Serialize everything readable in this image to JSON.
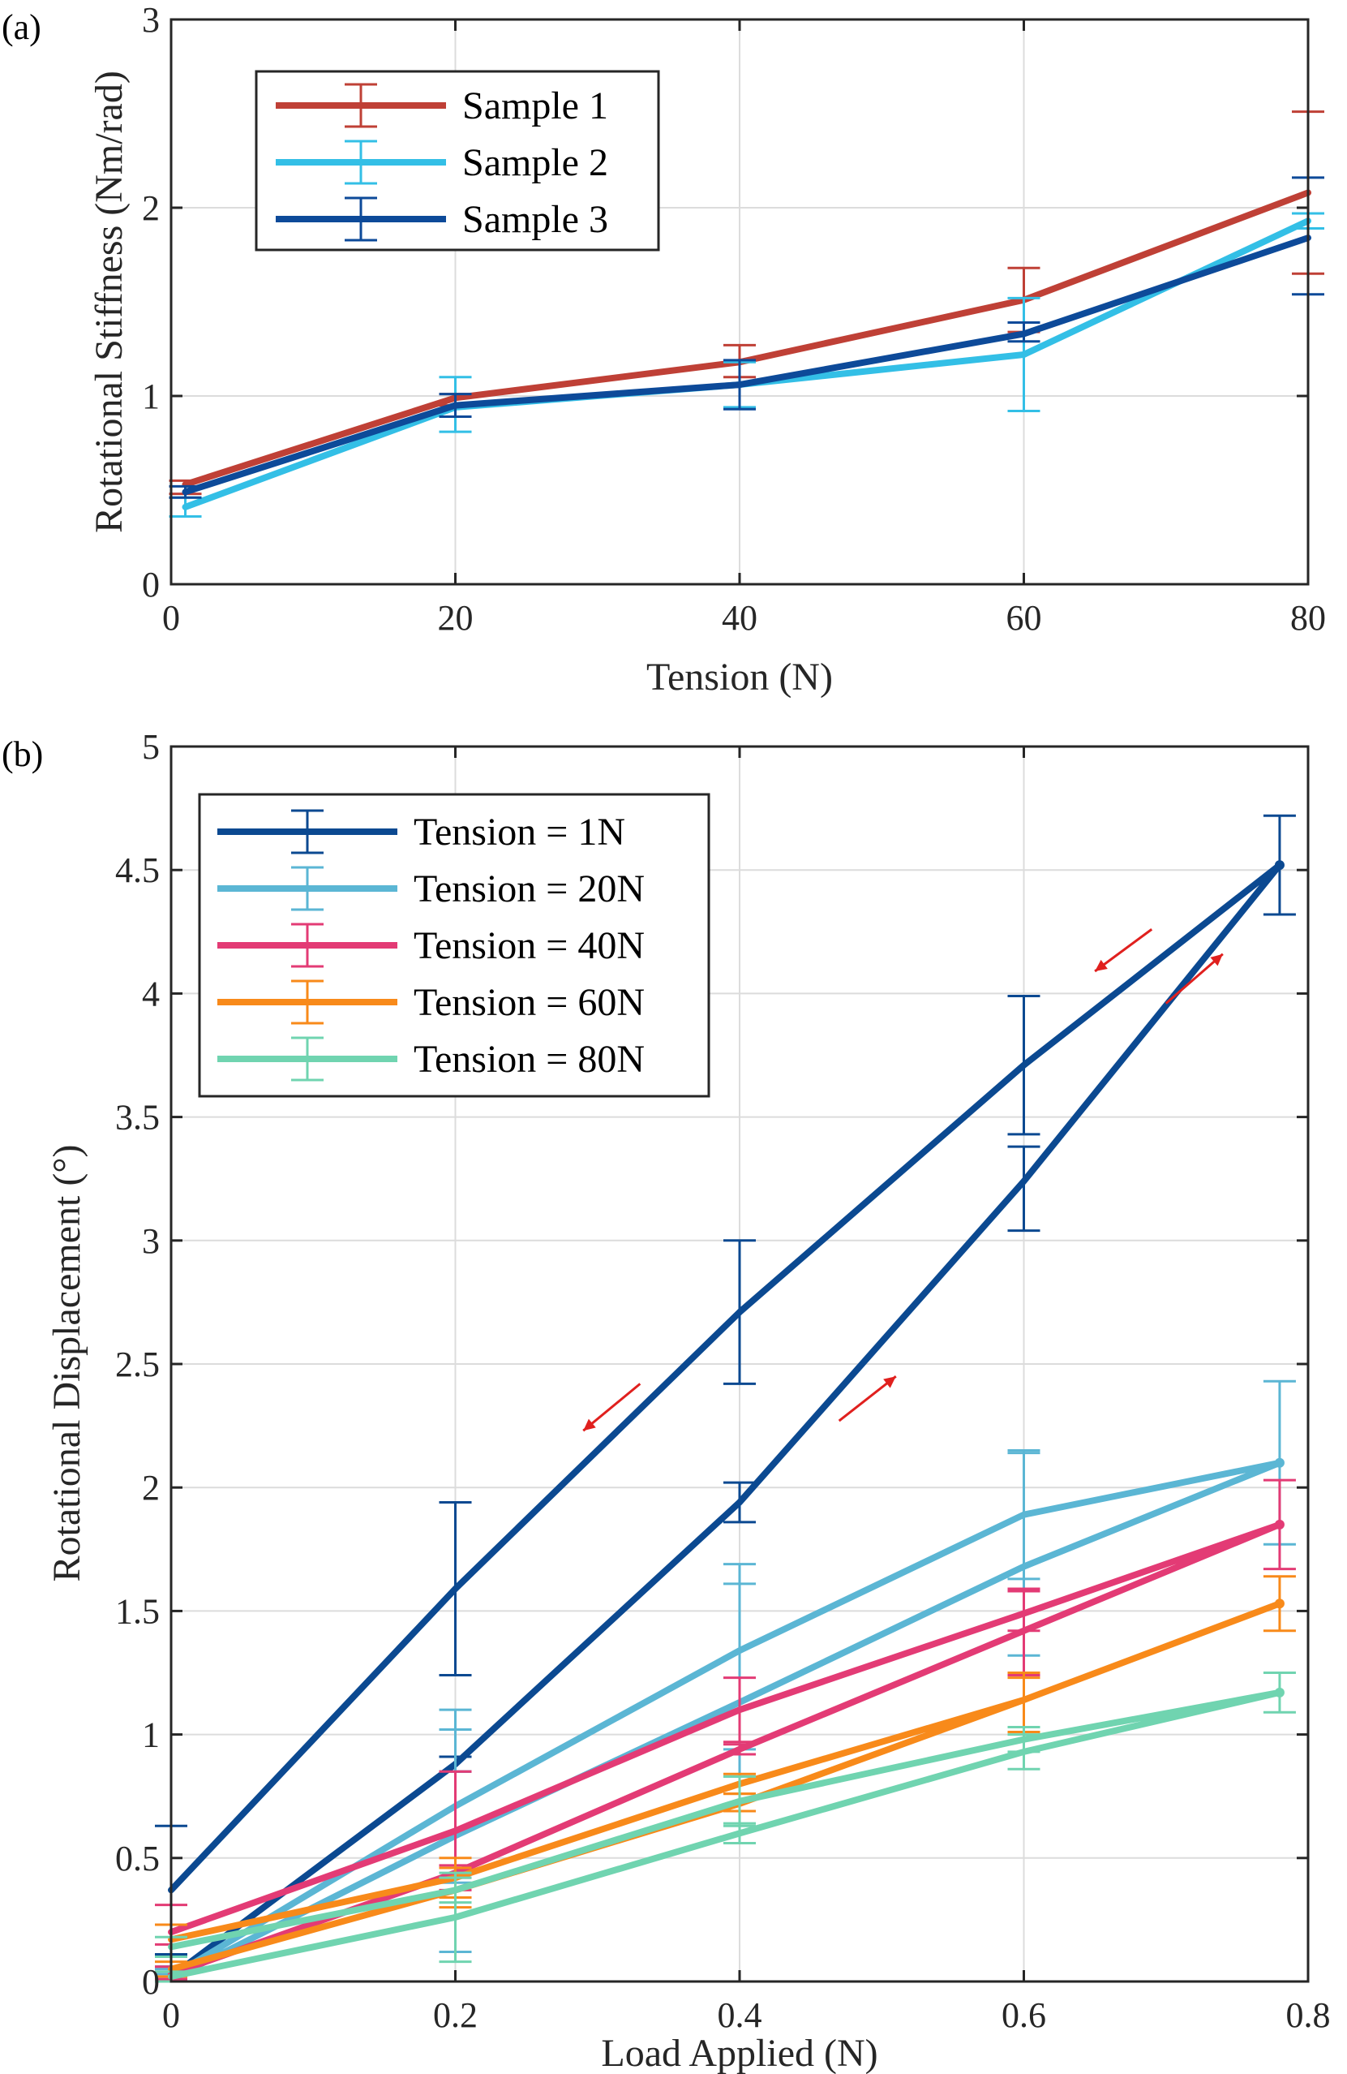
{
  "chart_data": [
    {
      "panel": "(a)",
      "type": "line",
      "xlabel": "Tension (N)",
      "ylabel": "Rotational Stiffness (Nm/rad)",
      "xlim": [
        0,
        80
      ],
      "ylim": [
        0,
        3
      ],
      "xticks": [
        0,
        20,
        40,
        60,
        80
      ],
      "yticks": [
        0,
        1,
        2,
        3
      ],
      "grid": true,
      "legend_position": "top-left",
      "series": [
        {
          "name": "Sample 1",
          "color": "#bf4036",
          "x": [
            1,
            20,
            40,
            60,
            80
          ],
          "y": [
            0.53,
            0.99,
            1.18,
            1.51,
            2.08
          ],
          "err_low": [
            0.48,
            0.95,
            1.1,
            1.34,
            1.65
          ],
          "err_high": [
            0.55,
            1.01,
            1.27,
            1.68,
            2.51
          ]
        },
        {
          "name": "Sample 2",
          "color": "#33bfe6",
          "x": [
            1,
            20,
            40,
            60,
            80
          ],
          "y": [
            0.41,
            0.94,
            1.06,
            1.22,
            1.93
          ],
          "err_low": [
            0.36,
            0.81,
            0.94,
            0.92,
            1.89
          ],
          "err_high": [
            0.46,
            1.1,
            1.18,
            1.52,
            1.97
          ]
        },
        {
          "name": "Sample 3",
          "color": "#0d4a99",
          "x": [
            1,
            20,
            40,
            60,
            80
          ],
          "y": [
            0.49,
            0.95,
            1.06,
            1.33,
            1.84
          ],
          "err_low": [
            0.46,
            0.89,
            0.93,
            1.29,
            1.54
          ],
          "err_high": [
            0.52,
            1.01,
            1.19,
            1.39,
            2.16
          ]
        }
      ]
    },
    {
      "panel": "(b)",
      "type": "line",
      "xlabel": "Load Applied (N)",
      "ylabel": "Rotational Displacement (°)",
      "xlim": [
        0,
        0.8
      ],
      "ylim": [
        0,
        5
      ],
      "xticks": [
        0,
        0.2,
        0.4,
        0.6,
        0.8
      ],
      "yticks": [
        0,
        0.5,
        1,
        1.5,
        2,
        2.5,
        3,
        3.5,
        4,
        4.5,
        5
      ],
      "grid": true,
      "legend_position": "top-left",
      "series": [
        {
          "name": "Tension = 1N",
          "color": "#0b4991",
          "x": [
            0,
            0.2,
            0.4,
            0.6,
            0.78,
            0.6,
            0.4,
            0.2,
            0
          ],
          "y": [
            0.02,
            0.88,
            1.94,
            3.24,
            4.52,
            3.71,
            2.71,
            1.59,
            0.37
          ],
          "err_low": [
            0.0,
            0.85,
            1.86,
            3.04,
            4.32,
            3.43,
            2.42,
            1.24,
            0.11
          ],
          "err_high": [
            0.06,
            0.91,
            2.02,
            3.38,
            4.72,
            3.99,
            3.0,
            1.94,
            0.63
          ]
        },
        {
          "name": "Tension = 20N",
          "color": "#5bb6d4",
          "x": [
            0,
            0.2,
            0.4,
            0.6,
            0.78,
            0.6,
            0.4,
            0.2,
            0
          ],
          "y": [
            0.02,
            0.71,
            1.34,
            1.89,
            2.1,
            1.68,
            1.13,
            0.59,
            0.01
          ],
          "err_low": [
            0.0,
            0.4,
            0.94,
            1.63,
            1.77,
            1.32,
            0.83,
            0.12,
            0.0
          ],
          "err_high": [
            0.05,
            1.02,
            1.69,
            2.15,
            2.43,
            2.14,
            1.61,
            1.1,
            0.03
          ]
        },
        {
          "name": "Tension = 40N",
          "color": "#e33b75",
          "x": [
            0,
            0.2,
            0.4,
            0.6,
            0.78,
            0.6,
            0.4,
            0.2,
            0
          ],
          "y": [
            0.2,
            0.61,
            1.1,
            1.49,
            1.85,
            1.42,
            0.94,
            0.44,
            0.03
          ],
          "err_low": [
            0.15,
            0.37,
            0.97,
            1.42,
            1.67,
            1.24,
            0.92,
            0.42,
            0.01
          ],
          "err_high": [
            0.31,
            0.85,
            1.23,
            1.59,
            2.03,
            1.58,
            0.96,
            0.47,
            0.06
          ]
        },
        {
          "name": "Tension = 60N",
          "color": "#f88a1a",
          "x": [
            0,
            0.2,
            0.4,
            0.6,
            0.78,
            0.6,
            0.4,
            0.2,
            0
          ],
          "y": [
            0.17,
            0.42,
            0.8,
            1.14,
            1.53,
            1.14,
            0.72,
            0.37,
            0.05
          ],
          "err_low": [
            0.1,
            0.34,
            0.76,
            1.03,
            1.42,
            1.01,
            0.69,
            0.3,
            0.02
          ],
          "err_high": [
            0.23,
            0.5,
            0.84,
            1.25,
            1.64,
            1.23,
            0.76,
            0.46,
            0.08
          ]
        },
        {
          "name": "Tension = 80N",
          "color": "#70d4b0",
          "x": [
            0,
            0.2,
            0.4,
            0.6,
            0.78,
            0.6,
            0.4,
            0.2,
            0
          ],
          "y": [
            0.14,
            0.37,
            0.73,
            0.98,
            1.17,
            0.93,
            0.6,
            0.26,
            0.02
          ],
          "err_low": [
            0.1,
            0.32,
            0.63,
            0.93,
            1.09,
            0.86,
            0.56,
            0.08,
            0.0
          ],
          "err_high": [
            0.18,
            0.42,
            0.83,
            1.03,
            1.25,
            1.0,
            0.64,
            0.44,
            0.04
          ]
        }
      ]
    }
  ]
}
